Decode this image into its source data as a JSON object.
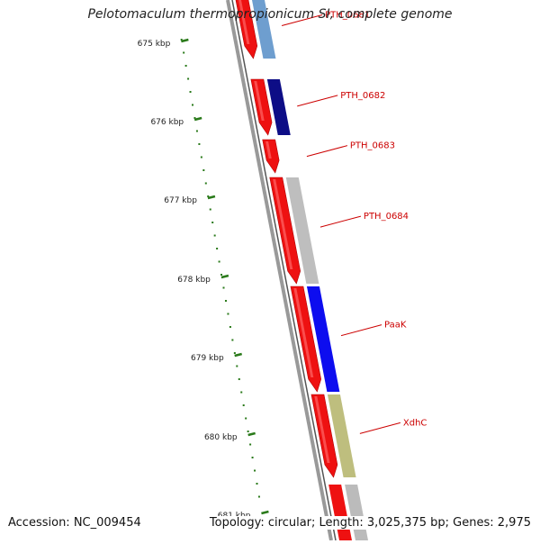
{
  "title": "Pelotomaculum thermopropionicum SI, complete genome",
  "footer": {
    "accession": "Accession: NC_009454",
    "summary": "Topology: circular; Length: 3,025,375 bp; Genes: 2,975"
  },
  "colors": {
    "forward_cds": "#ee1111",
    "backbone": "#888888",
    "tick": "#2a7a1a",
    "label": "#cc0000"
  },
  "scale_labels": [
    "675 kbp",
    "676 kbp",
    "677 kbp",
    "678 kbp",
    "679 kbp",
    "680 kbp",
    "681 kbp"
  ],
  "genes": [
    {
      "label": "PTH_0681",
      "strand_color": "#ee1111",
      "function_color": "#6699cc"
    },
    {
      "label": "PTH_0682",
      "strand_color": "#ee1111",
      "function_color": "#000080"
    },
    {
      "label": "PTH_0683",
      "strand_color": "#ee1111",
      "function_color": "#ffffff"
    },
    {
      "label": "PTH_0684",
      "strand_color": "#ee1111",
      "function_color": "#bbbbbb"
    },
    {
      "label": "PaaK",
      "strand_color": "#ee1111",
      "function_color": "#0000ee"
    },
    {
      "label": "XdhC",
      "strand_color": "#ee1111",
      "function_color": "#bbbb77"
    }
  ]
}
